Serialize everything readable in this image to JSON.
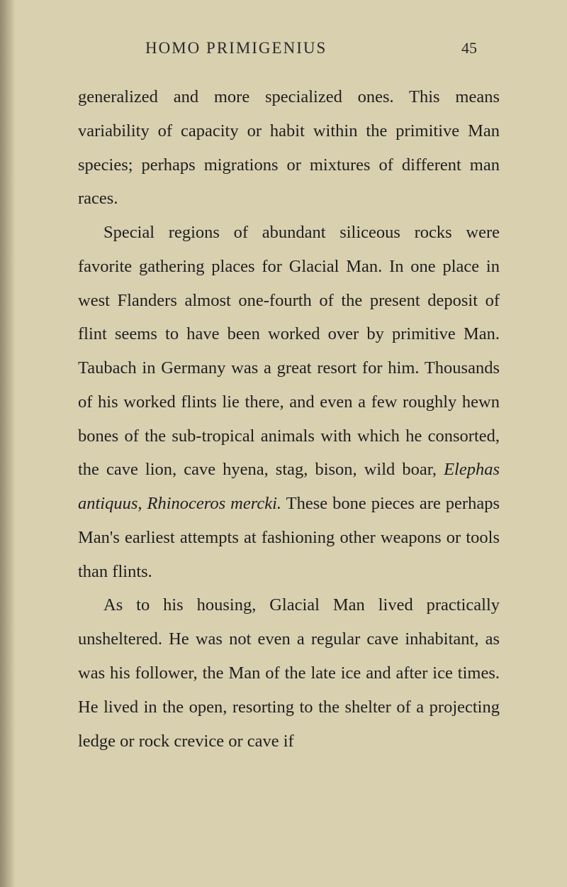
{
  "header": {
    "running_head": "HOMO PRIMIGENIUS",
    "page_number": "45"
  },
  "paragraphs": {
    "p1": "generalized and more specialized ones. This means variability of capacity or habit within the primitive Man species; perhaps migrations or mixtures of different man races.",
    "p2_part1": "Special regions of abundant siliceous rocks were favorite gathering places for Glacial Man. In one place in west Flanders almost one-fourth of the present deposit of flint seems to have been worked over by primitive Man. Taubach in Germany was a great re­sort for him. Thousands of his worked flints lie there, and even a few roughly hewn bones of the sub-tropical animals with which he con­sorted, the cave lion, cave hyena, stag, bison, wild boar, ",
    "p2_italic1": "Elephas antiquus, Rhinoceros mercki.",
    "p2_part2": " These bone pieces are perhaps Man's earliest attempts at fashioning other weapons or tools than flints.",
    "p3": "As to his housing, Glacial Man lived prac­tically unsheltered. He was not even a regu­lar cave inhabitant, as was his follower, the Man of the late ice and after ice times. He lived in the open, resorting to the shelter of a projecting ledge or rock crevice or cave if"
  },
  "styling": {
    "background_color": "#d9d0b0",
    "text_color": "#1f1f1f",
    "font_family": "Georgia, serif",
    "body_font_size": 24.5,
    "header_font_size": 23,
    "page_number_font_size": 22,
    "line_height": 1.95,
    "indent_size": 36
  }
}
